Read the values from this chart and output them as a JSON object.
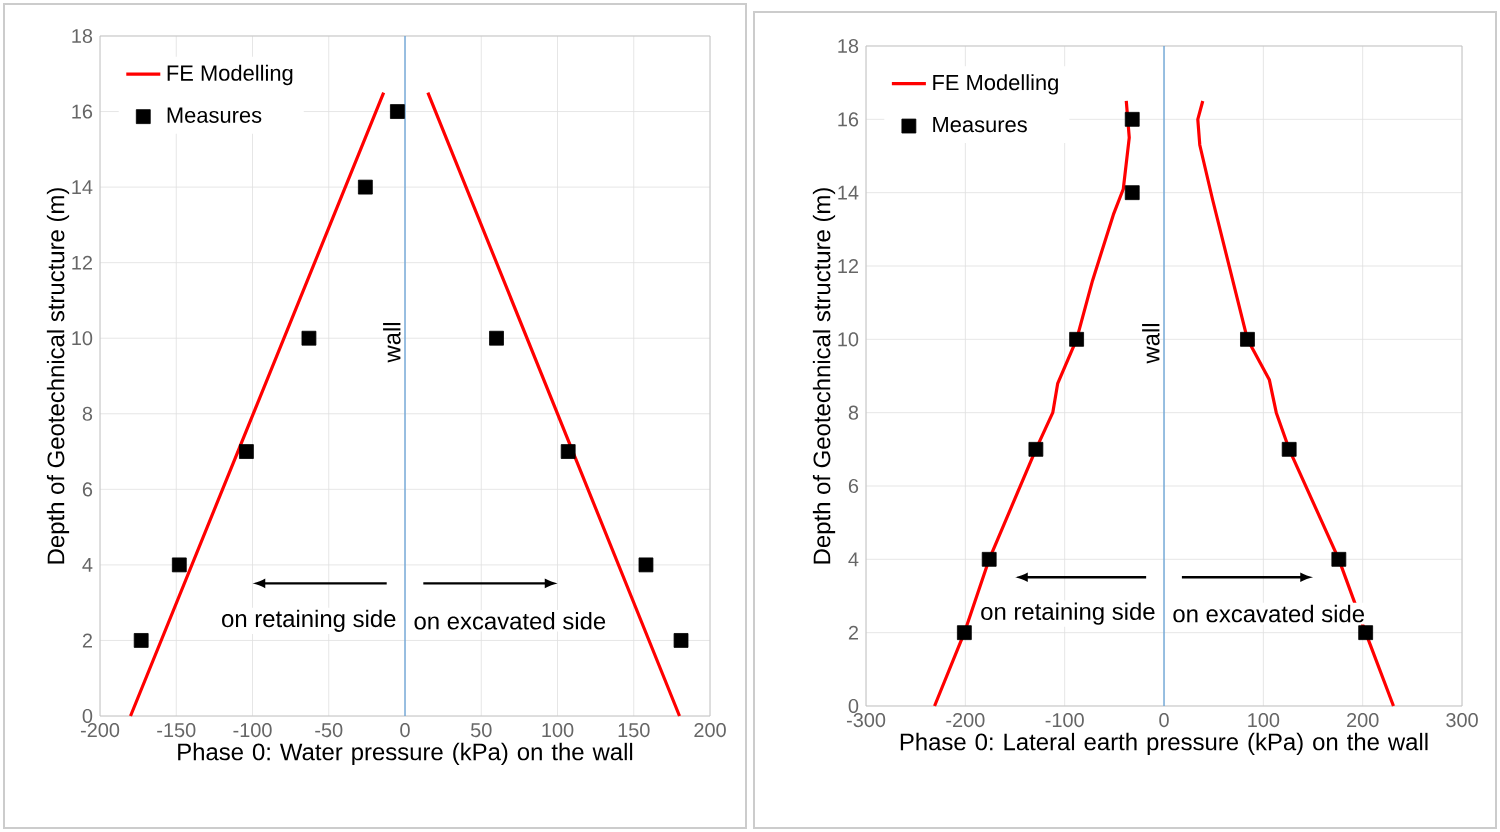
{
  "chart_data": [
    {
      "type": "line",
      "xlabel": "Phase 0: Water pressure (kPa) on the wall",
      "ylabel": "Depth of Geotechnical structure (m)",
      "xlim": [
        -200,
        200
      ],
      "xticks": [
        -200,
        -150,
        -100,
        -50,
        0,
        50,
        100,
        150,
        200
      ],
      "ylim": [
        0,
        18
      ],
      "yticks": [
        0,
        2,
        4,
        6,
        8,
        10,
        12,
        14,
        16,
        18
      ],
      "grid": true,
      "legend": "top left",
      "series": [
        {
          "name": "FE Modelling",
          "color": "#ff0000",
          "marker": "none",
          "x": [
            -180,
            -14,
            0,
            15,
            180
          ],
          "values": [
            0,
            16.5,
            null,
            16.5,
            0
          ]
        },
        {
          "name": "Measures",
          "type": "scatter",
          "color": "#000000",
          "marker": "square",
          "x": [
            -5,
            -26,
            -63,
            -104,
            -148,
            -173,
            60,
            107,
            158,
            181
          ],
          "values": [
            16,
            14,
            10,
            7,
            4,
            2,
            10,
            7,
            4,
            2
          ]
        }
      ],
      "ref_lines": [
        {
          "axis": "x",
          "value": 0,
          "label": "wall",
          "color": "#5b9bd5"
        }
      ],
      "annotations": [
        "on retaining side",
        "on excavated side"
      ]
    },
    {
      "type": "line",
      "xlabel": "Phase 0: Lateral earth pressure (kPa) on the wall",
      "ylabel": "Depth of Geotechnical structure (m)",
      "xlim": [
        -300,
        300
      ],
      "xticks": [
        -300,
        -200,
        -100,
        0,
        100,
        200,
        300
      ],
      "ylim": [
        0,
        18
      ],
      "yticks": [
        0,
        2,
        4,
        6,
        8,
        10,
        12,
        14,
        16,
        18
      ],
      "grid": true,
      "legend": "top left",
      "series": [
        {
          "name": "FE Modelling",
          "color": "#ff0000",
          "marker": "none",
          "x": [
            -231,
            -201,
            -176,
            -129,
            -112,
            -107,
            -88,
            -72,
            -51,
            -41,
            -35,
            -38,
            0,
            39,
            34,
            36,
            49,
            84,
            106,
            113,
            126,
            176,
            203,
            231
          ],
          "values": [
            0,
            2,
            4,
            7,
            8,
            8.8,
            10,
            11.6,
            13.4,
            14.1,
            15.5,
            16.5,
            null,
            16.5,
            16,
            15.3,
            13.8,
            10,
            8.9,
            8,
            7,
            4,
            2,
            0
          ]
        },
        {
          "name": "Measures",
          "type": "scatter",
          "color": "#000000",
          "marker": "square",
          "x": [
            -32,
            -32,
            -88,
            -129,
            -176,
            -201,
            84,
            126,
            176,
            203
          ],
          "values": [
            16,
            14,
            10,
            7,
            4,
            2,
            10,
            7,
            4,
            2
          ]
        }
      ],
      "ref_lines": [
        {
          "axis": "x",
          "value": 0,
          "label": "wall",
          "color": "#5b9bd5"
        }
      ],
      "annotations": [
        "on retaining side",
        "on excavated side"
      ]
    }
  ]
}
